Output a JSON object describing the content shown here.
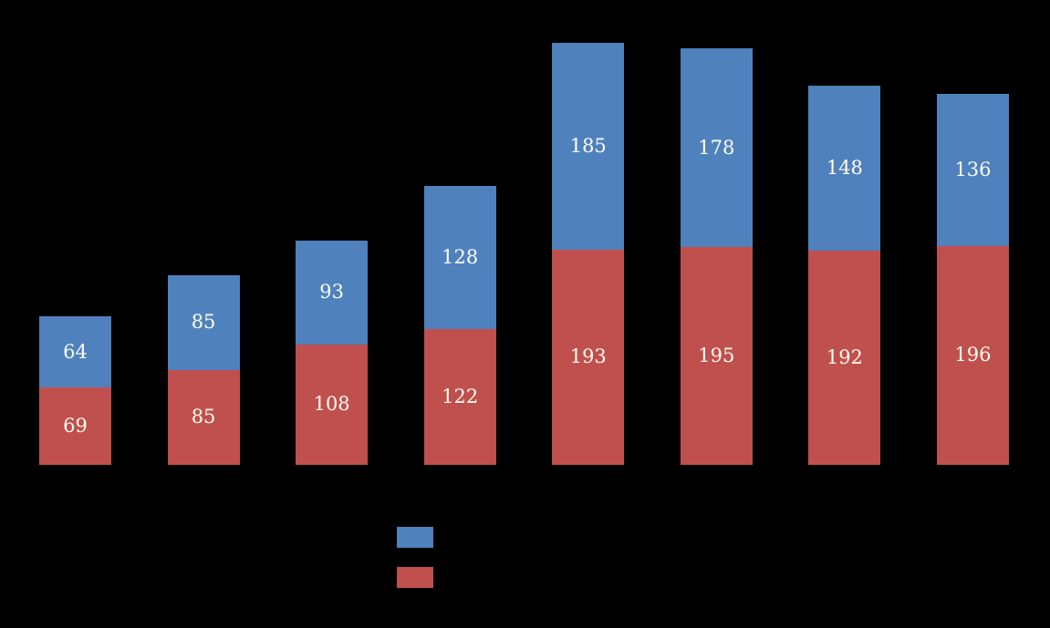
{
  "chart_data": {
    "type": "bar",
    "stacked": true,
    "title": "",
    "xlabel": "",
    "ylabel": "",
    "categories": [
      "",
      "",
      "",
      "",
      "",
      "",
      "",
      ""
    ],
    "series": [
      {
        "name": "red",
        "color": "#C0504D",
        "values": [
          69,
          85,
          108,
          122,
          193,
          195,
          192,
          196
        ]
      },
      {
        "name": "blue",
        "color": "#4F81BD",
        "values": [
          64,
          85,
          93,
          128,
          185,
          178,
          148,
          136
        ]
      }
    ],
    "totals": [
      133,
      170,
      201,
      250,
      378,
      373,
      340,
      332
    ],
    "label_color": "#FFFDF3",
    "background_color": "#000000",
    "legend_position": "bottom-center",
    "legend_order": [
      "blue",
      "red"
    ],
    "grid": false,
    "axis_labels_visible": false
  }
}
